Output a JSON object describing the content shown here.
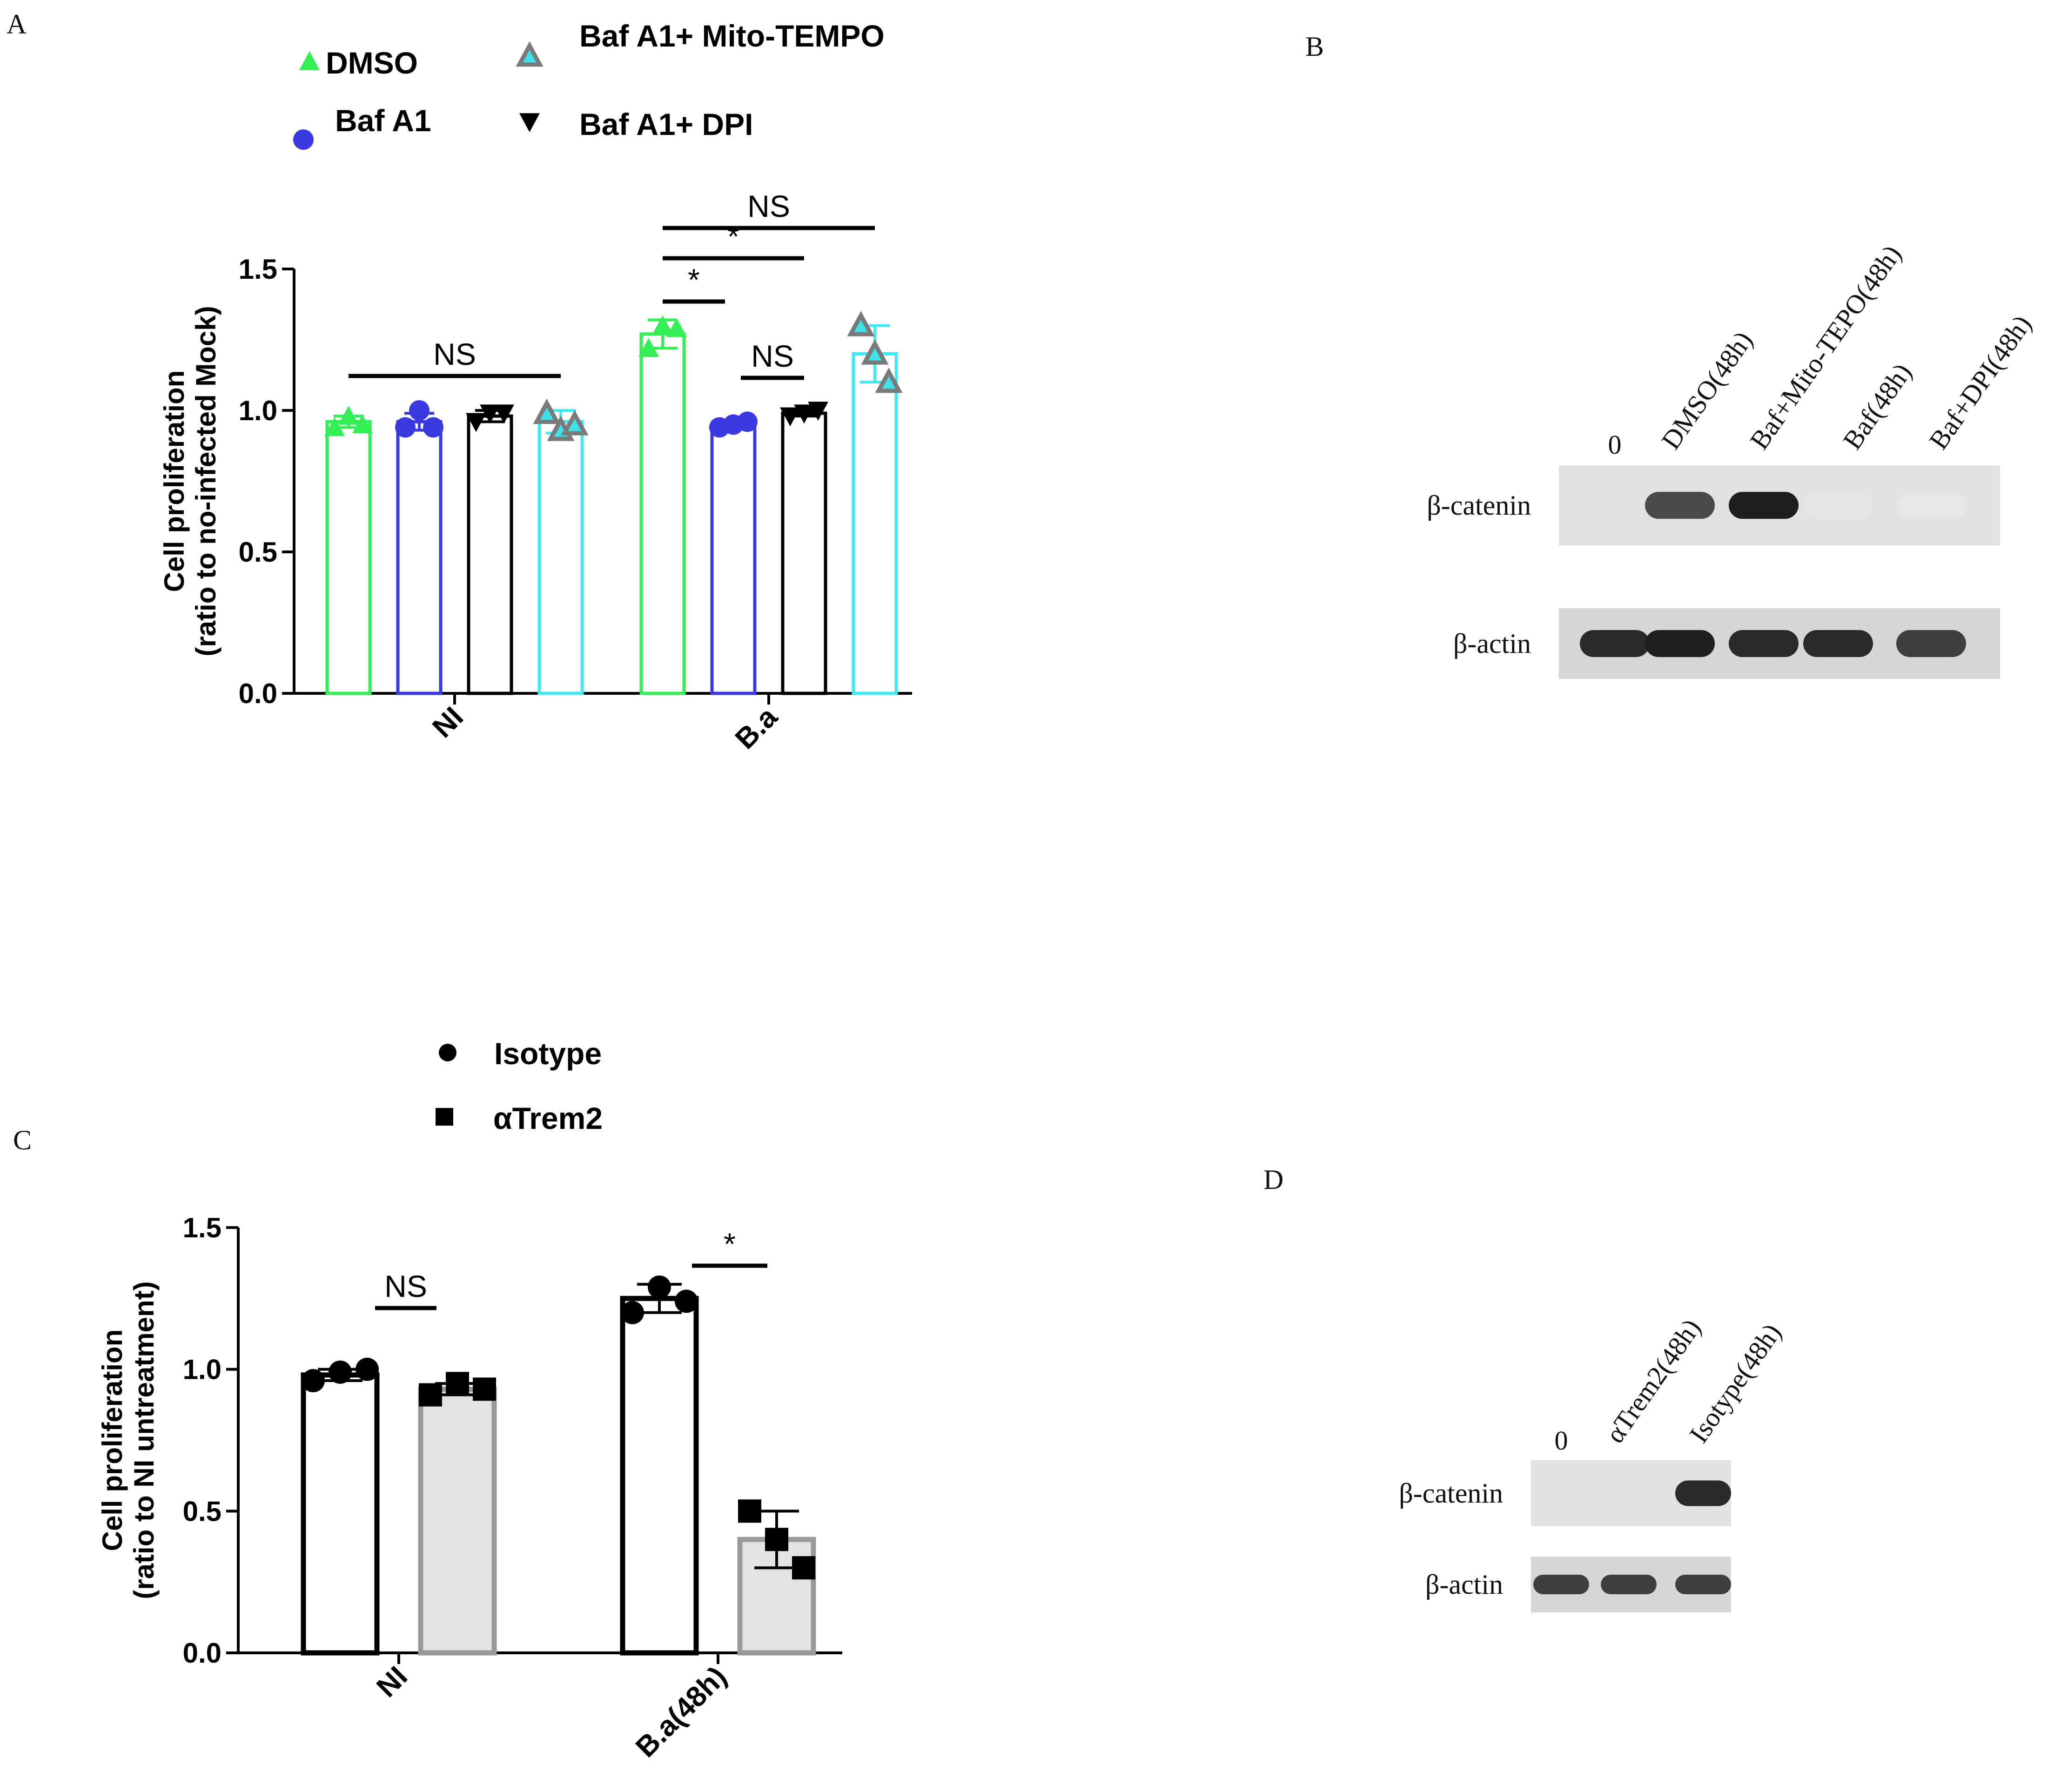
{
  "panels": {
    "A": {
      "letter": "A"
    },
    "B": {
      "letter": "B"
    },
    "C": {
      "letter": "C"
    },
    "D": {
      "letter": "D"
    }
  },
  "chart_data": [
    {
      "type": "bar",
      "panel": "A",
      "title": "",
      "ylabel": "Cell proliferation\n(ratio to no-infected Mock)",
      "xlabel": "",
      "ylim": [
        0,
        1.5
      ],
      "yticks": [
        "0.0",
        "0.5",
        "1.0",
        "1.5"
      ],
      "categories": [
        "NI",
        "B.a"
      ],
      "legend_position": "top",
      "series": [
        {
          "name": "DMSO",
          "color": "#33ee55",
          "marker": "triangle-up",
          "values": [
            0.96,
            1.27
          ],
          "sd": [
            0.02,
            0.05
          ],
          "points": [
            [
              0.94,
              0.98,
              0.95
            ],
            [
              1.22,
              1.3,
              1.29
            ]
          ]
        },
        {
          "name": "Baf A1",
          "color": "#3a3ae0",
          "marker": "circle",
          "values": [
            0.96,
            0.95
          ],
          "sd": [
            0.03,
            0.01
          ],
          "points": [
            [
              0.94,
              1.0,
              0.94
            ],
            [
              0.94,
              0.95,
              0.96
            ]
          ]
        },
        {
          "name": "Baf A1+ DPI",
          "color": "#000000",
          "marker": "triangle-down",
          "values": [
            0.98,
            0.99
          ],
          "sd": [
            0.02,
            0.01
          ],
          "points": [
            [
              0.96,
              0.99,
              0.99
            ],
            [
              0.98,
              0.99,
              1.0
            ]
          ]
        },
        {
          "name": "Baf A1+ Mito-TEMPO",
          "color": "#44e8f0",
          "marker": "triangle-open",
          "values": [
            0.96,
            1.2
          ],
          "sd": [
            0.04,
            0.1
          ],
          "points": [
            [
              0.99,
              0.93,
              0.95
            ],
            [
              1.3,
              1.2,
              1.1
            ]
          ]
        }
      ],
      "significance": [
        {
          "label": "NS",
          "group": "NI",
          "from_series": 0,
          "to_series": 3
        },
        {
          "label": "*",
          "group": "B.a",
          "from_series": 0,
          "to_series": 1
        },
        {
          "label": "*",
          "group": "B.a",
          "from_series": 0,
          "to_series": 2
        },
        {
          "label": "NS",
          "group": "B.a",
          "from_series": 0,
          "to_series": 3
        },
        {
          "label": "NS",
          "group": "B.a",
          "from_series": 1,
          "to_series": 2
        }
      ]
    },
    {
      "type": "bar",
      "panel": "C",
      "title": "",
      "ylabel": "Cell proliferation\n(ratio to NI untreatment)",
      "xlabel": "",
      "ylim": [
        0,
        1.5
      ],
      "yticks": [
        "0.0",
        "0.5",
        "1.0",
        "1.5"
      ],
      "categories": [
        "NI",
        "B.a(48h)"
      ],
      "legend_position": "top",
      "series": [
        {
          "name": "Isotype",
          "color": "#000000",
          "fill": "#ffffff",
          "marker": "circle",
          "values": [
            0.98,
            1.25
          ],
          "sd": [
            0.02,
            0.05
          ],
          "points": [
            [
              0.96,
              0.99,
              1.0
            ],
            [
              1.2,
              1.29,
              1.24
            ]
          ]
        },
        {
          "name": "αTrem2",
          "color": "#999999",
          "fill": "#e3e3e3",
          "marker": "square",
          "values": [
            0.93,
            0.4
          ],
          "sd": [
            0.02,
            0.1
          ],
          "points": [
            [
              0.91,
              0.95,
              0.93
            ],
            [
              0.5,
              0.4,
              0.3
            ]
          ]
        }
      ],
      "significance": [
        {
          "label": "NS",
          "group": "NI",
          "from_series": 0,
          "to_series": 1
        },
        {
          "label": "*",
          "group": "B.a(48h)",
          "from_series": 0,
          "to_series": 1
        }
      ]
    }
  ],
  "blot_B": {
    "lanes": [
      "0",
      "DMSO(48h)",
      "Baf+Mito-TEPO(48h)",
      "Baf(48h)",
      "Baf+DPI(48h)"
    ],
    "rows": [
      {
        "label": "β-catenin",
        "band_intensity": [
          0,
          0.75,
          0.95,
          0.03,
          0.02
        ]
      },
      {
        "label": "β-actin",
        "band_intensity": [
          0.9,
          0.95,
          0.9,
          0.9,
          0.8
        ]
      }
    ]
  },
  "blot_D": {
    "lanes": [
      "0",
      "αTrem2(48h)",
      "Isotype(48h)"
    ],
    "rows": [
      {
        "label": "β-catenin",
        "band_intensity": [
          0,
          0,
          0.9
        ]
      },
      {
        "label": "β-actin",
        "band_intensity": [
          0.8,
          0.8,
          0.8
        ]
      }
    ]
  }
}
